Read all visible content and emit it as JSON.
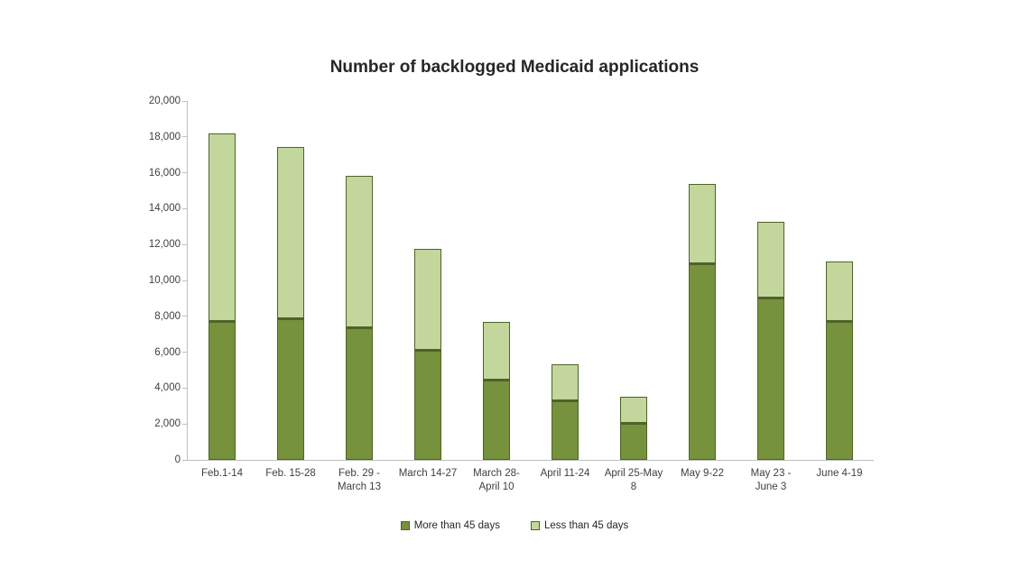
{
  "page": {
    "background": "#ffffff"
  },
  "chart_data": {
    "type": "bar",
    "stacked": true,
    "title": "Number of backlogged Medicaid applications",
    "categories": [
      "Feb.1-14",
      "Feb. 15-28",
      "Feb. 29 -\nMarch 13",
      "March 14-27",
      "March 28-\nApril 10",
      "April 11-24",
      "April 25-May\n8",
      "May 9-22",
      "May 23 -\nJune 3",
      "June 4-19"
    ],
    "series": [
      {
        "name": "More than 45 days",
        "color": "#76923c",
        "values": [
          7750,
          7900,
          7400,
          6150,
          4450,
          3300,
          2050,
          10950,
          9050,
          7750
        ]
      },
      {
        "name": "Less than 45 days",
        "color": "#c3d69b",
        "values": [
          10450,
          9550,
          8450,
          5600,
          3250,
          2050,
          1450,
          4450,
          4200,
          3300
        ]
      }
    ],
    "xlabel": "",
    "ylabel": "",
    "ylim": [
      0,
      20000
    ],
    "ytick_step": 2000,
    "ytick_labels": [
      "0",
      "2,000",
      "4,000",
      "6,000",
      "8,000",
      "10,000",
      "12,000",
      "14,000",
      "16,000",
      "18,000",
      "20,000"
    ],
    "grid": false,
    "legend_position": "bottom",
    "colors": {
      "bar_border": "#4f6228",
      "axis_line": "#bfbfbf",
      "tick_text": "#404040",
      "title_text": "#262626"
    }
  }
}
